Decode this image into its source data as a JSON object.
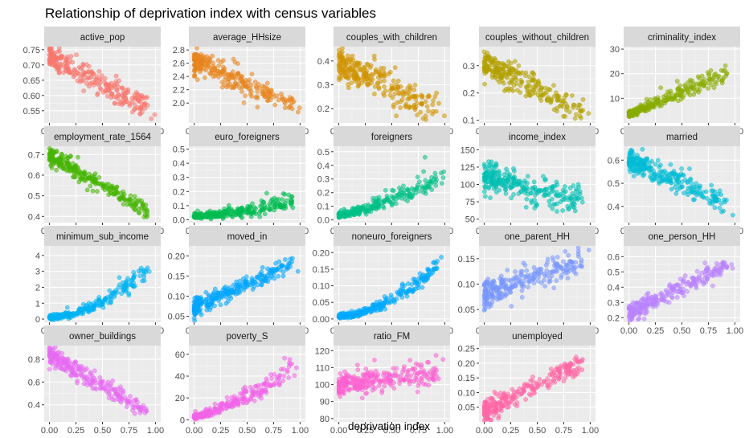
{
  "chart_data": {
    "type": "scatter",
    "title": "Relationship of deprivation index with census variables",
    "xlabel": "deprivation index",
    "ylabel": "",
    "x_ticks": [
      0.0,
      0.25,
      0.5,
      0.75,
      1.0
    ],
    "x_tick_labels": [
      "0.00",
      "0.25",
      "0.50",
      "0.75",
      "1.00"
    ],
    "xlim": [
      -0.05,
      1.05
    ],
    "grid": true,
    "point_alpha": 0.55,
    "n_points_per_panel": 260,
    "panels": [
      {
        "name": "active_pop",
        "color": "#F8766D",
        "ylim": [
          0.51,
          0.76
        ],
        "yticks": [
          0.55,
          0.6,
          0.65,
          0.7,
          0.75
        ],
        "ytick_labels": [
          "0.55",
          "0.60",
          "0.65",
          "0.70",
          "0.75"
        ],
        "trend": [
          0.725,
          0.545
        ],
        "spread": 0.02,
        "curve": 1.0,
        "skew": 0
      },
      {
        "name": "average_HHsize",
        "color": "#E7851E",
        "ylim": [
          1.7,
          2.85
        ],
        "yticks": [
          2.0,
          2.2,
          2.4,
          2.6,
          2.8
        ],
        "ytick_labels": [
          "2.0",
          "2.2",
          "2.4",
          "2.6",
          "2.8"
        ],
        "trend": [
          2.62,
          1.95
        ],
        "spread": 0.09,
        "curve": 1.0,
        "skew": 0
      },
      {
        "name": "couples_with_children",
        "color": "#D09400",
        "ylim": [
          0.14,
          0.46
        ],
        "yticks": [
          0.2,
          0.3,
          0.4
        ],
        "ytick_labels": [
          "0.2",
          "0.3",
          "0.4"
        ],
        "trend": [
          0.39,
          0.18
        ],
        "spread": 0.035,
        "curve": 1.0,
        "skew": 0
      },
      {
        "name": "couples_without_children",
        "color": "#B2A100",
        "ylim": [
          0.09,
          0.37
        ],
        "yticks": [
          0.1,
          0.2,
          0.3
        ],
        "ytick_labels": [
          "0.1",
          "0.2",
          "0.3"
        ],
        "trend": [
          0.31,
          0.12
        ],
        "spread": 0.025,
        "curve": 1.0,
        "skew": 0
      },
      {
        "name": "criminality_index",
        "color": "#89AC00",
        "ylim": [
          0,
          31
        ],
        "yticks": [
          10,
          20,
          30
        ],
        "ytick_labels": [
          "10",
          "20",
          "30"
        ],
        "trend": [
          3,
          20
        ],
        "spread": 2.5,
        "curve": 1.0,
        "skew": 1
      },
      {
        "name": "employment_rate_1564",
        "color": "#45B500",
        "ylim": [
          0.37,
          0.74
        ],
        "yticks": [
          0.4,
          0.5,
          0.6,
          0.7
        ],
        "ytick_labels": [
          "0.4",
          "0.5",
          "0.6",
          "0.7"
        ],
        "trend": [
          0.7,
          0.4
        ],
        "spread": 0.02,
        "curve": 1.0,
        "skew": 0
      },
      {
        "name": "euro_foreigners",
        "color": "#00BC51",
        "ylim": [
          -0.02,
          0.52
        ],
        "yticks": [
          0.0,
          0.1,
          0.2,
          0.3,
          0.4,
          0.5
        ],
        "ytick_labels": [
          "0.0",
          "0.1",
          "0.2",
          "0.3",
          "0.4",
          "0.5"
        ],
        "trend": [
          0.02,
          0.12
        ],
        "spread": 0.03,
        "curve": 1.6,
        "skew": 1
      },
      {
        "name": "foreigners",
        "color": "#00C087",
        "ylim": [
          -0.02,
          0.54
        ],
        "yticks": [
          0.0,
          0.1,
          0.2,
          0.3,
          0.4,
          0.5
        ],
        "ytick_labels": [
          "0.0",
          "0.1",
          "0.2",
          "0.3",
          "0.4",
          "0.5"
        ],
        "trend": [
          0.03,
          0.3
        ],
        "spread": 0.04,
        "curve": 1.4,
        "skew": 1
      },
      {
        "name": "income_index",
        "color": "#00BFB3",
        "ylim": [
          45,
          155
        ],
        "yticks": [
          50,
          75,
          100,
          125,
          150
        ],
        "ytick_labels": [
          "50",
          "75",
          "100",
          "125",
          "150"
        ],
        "trend": [
          112,
          72
        ],
        "spread": 10,
        "curve": 1.0,
        "skew": 0
      },
      {
        "name": "married",
        "color": "#00BCD6",
        "ylim": [
          0.33,
          0.66
        ],
        "yticks": [
          0.4,
          0.5,
          0.6
        ],
        "ytick_labels": [
          "0.4",
          "0.5",
          "0.6"
        ],
        "trend": [
          0.6,
          0.4
        ],
        "spread": 0.025,
        "curve": 1.0,
        "skew": 0
      },
      {
        "name": "minimum_sub_income",
        "color": "#00B3F2",
        "ylim": [
          -0.2,
          4.6
        ],
        "yticks": [
          0,
          1,
          2,
          3,
          4
        ],
        "ytick_labels": [
          "0",
          "1",
          "2",
          "3",
          "4"
        ],
        "trend": [
          0.05,
          3.2
        ],
        "spread": 0.25,
        "curve": 1.8,
        "skew": 1
      },
      {
        "name": "moved_in",
        "color": "#00A5FF",
        "ylim": [
          0.035,
          0.225
        ],
        "yticks": [
          0.05,
          0.1,
          0.15,
          0.2
        ],
        "ytick_labels": [
          "0.05",
          "0.10",
          "0.15",
          "0.20"
        ],
        "trend": [
          0.07,
          0.19
        ],
        "spread": 0.012,
        "curve": 1.0,
        "skew": 0
      },
      {
        "name": "noneuro_foreigners",
        "color": "#00A9FF",
        "ylim": [
          -0.01,
          0.22
        ],
        "yticks": [
          0.0,
          0.05,
          0.1,
          0.15,
          0.2
        ],
        "ytick_labels": [
          "0.00",
          "0.05",
          "0.10",
          "0.15",
          "0.20"
        ],
        "trend": [
          0.005,
          0.17
        ],
        "spread": 0.012,
        "curve": 1.8,
        "skew": 1
      },
      {
        "name": "one_parent_HH",
        "color": "#7997FF",
        "ylim": [
          0.025,
          0.175
        ],
        "yticks": [
          0.05,
          0.1,
          0.15
        ],
        "ytick_labels": [
          "0.05",
          "0.10",
          "0.15"
        ],
        "trend": [
          0.075,
          0.15
        ],
        "spread": 0.014,
        "curve": 0.8,
        "skew": 0
      },
      {
        "name": "one_person_HH",
        "color": "#B983FF",
        "ylim": [
          0.17,
          0.67
        ],
        "yticks": [
          0.2,
          0.3,
          0.4,
          0.5,
          0.6
        ],
        "ytick_labels": [
          "0.2",
          "0.3",
          "0.4",
          "0.5",
          "0.6"
        ],
        "trend": [
          0.23,
          0.57
        ],
        "spread": 0.03,
        "curve": 1.0,
        "skew": 0
      },
      {
        "name": "owner_buildings",
        "color": "#E76BF3",
        "ylim": [
          0.25,
          0.92
        ],
        "yticks": [
          0.4,
          0.6,
          0.8
        ],
        "ytick_labels": [
          "0.4",
          "0.6",
          "0.8"
        ],
        "trend": [
          0.84,
          0.3
        ],
        "spread": 0.04,
        "curve": 1.0,
        "skew": 0
      },
      {
        "name": "poverty_S",
        "color": "#F265E7",
        "ylim": [
          -2,
          68
        ],
        "yticks": [
          0,
          20,
          40,
          60
        ],
        "ytick_labels": [
          "0",
          "20",
          "40",
          "60"
        ],
        "trend": [
          2,
          45
        ],
        "spread": 5,
        "curve": 1.3,
        "skew": 1
      },
      {
        "name": "ratio_FM",
        "color": "#FD61D1",
        "ylim": [
          78,
          123
        ],
        "yticks": [
          80,
          90,
          100,
          110,
          120
        ],
        "ytick_labels": [
          "80",
          "90",
          "100",
          "110",
          "120"
        ],
        "trend": [
          100,
          108
        ],
        "spread": 3.5,
        "curve": 1.0,
        "skew": 0
      },
      {
        "name": "unemployed",
        "color": "#FF67A4",
        "ylim": [
          0.0,
          0.26
        ],
        "yticks": [
          0.05,
          0.1,
          0.15,
          0.2,
          0.25
        ],
        "ytick_labels": [
          "0.05",
          "0.10",
          "0.15",
          "0.20",
          "0.25"
        ],
        "trend": [
          0.035,
          0.22
        ],
        "spread": 0.018,
        "curve": 1.0,
        "skew": 0
      }
    ]
  }
}
